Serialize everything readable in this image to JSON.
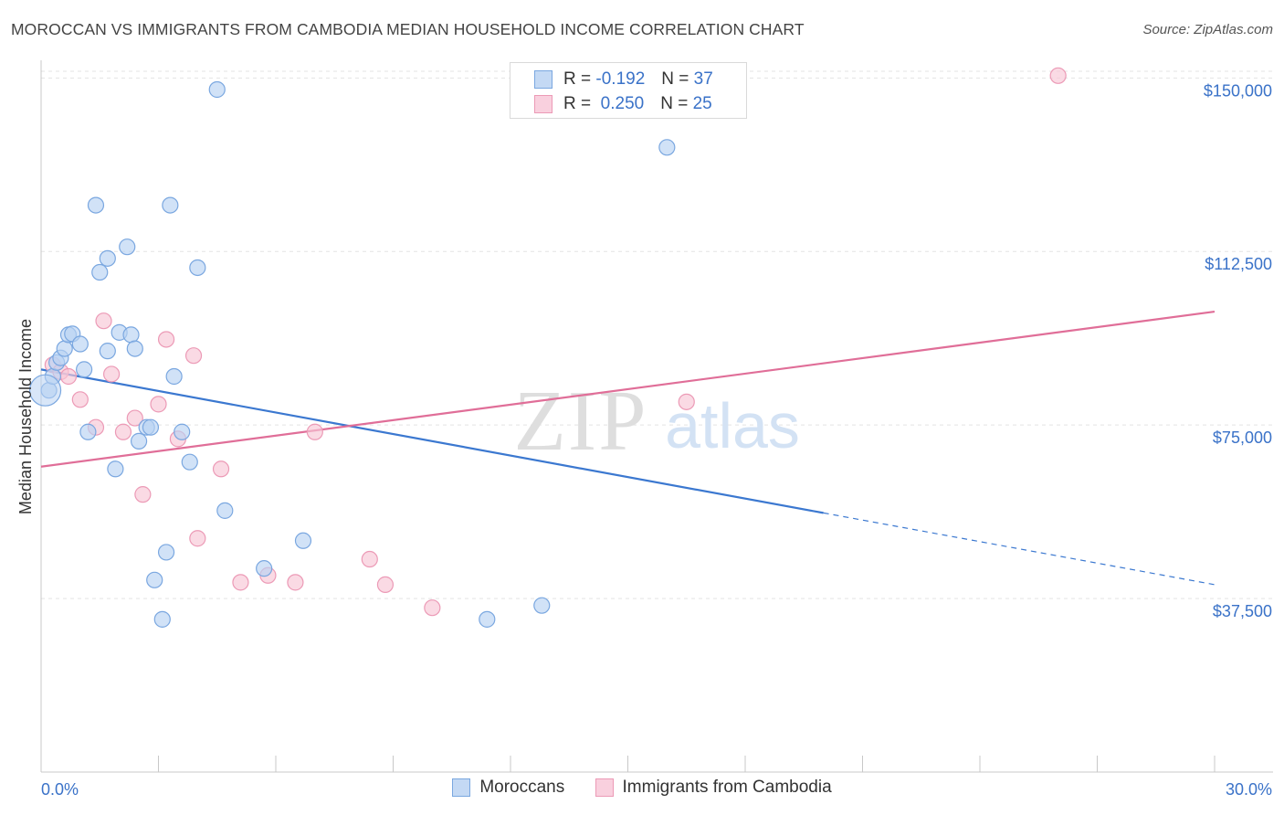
{
  "title": "MOROCCAN VS IMMIGRANTS FROM CAMBODIA MEDIAN HOUSEHOLD INCOME CORRELATION CHART",
  "source": "Source: ZipAtlas.com",
  "watermark": {
    "zip": "ZIP",
    "atlas": "atlas"
  },
  "stats_legend": {
    "rows": [
      {
        "r_label": "R =",
        "r_value": "-0.192",
        "n_label": "N =",
        "n_value": "37",
        "color": "#8ab4e8"
      },
      {
        "r_label": "R =",
        "r_value": "0.250",
        "n_label": "N =",
        "n_value": "25",
        "color": "#f2a8c0"
      }
    ]
  },
  "bottom_legend": [
    {
      "label": "Moroccans",
      "color": "#8ab4e8"
    },
    {
      "label": "Immigrants from Cambodia",
      "color": "#f2a8c0"
    }
  ],
  "chart_data": {
    "type": "scatter",
    "title": "MOROCCAN VS IMMIGRANTS FROM CAMBODIA MEDIAN HOUSEHOLD INCOME CORRELATION CHART",
    "xlabel": "",
    "ylabel": "Median Household Income",
    "xlim": [
      0,
      30
    ],
    "ylim": [
      0,
      155000
    ],
    "x_tick_labels": [
      "0.0%",
      "30.0%"
    ],
    "y_ticks": [
      37500,
      75000,
      112500,
      150000
    ],
    "y_tick_labels": [
      "$37,500",
      "$75,000",
      "$112,500",
      "$150,000"
    ],
    "grid": true,
    "legend_position": "top-center",
    "series": [
      {
        "name": "Moroccans",
        "color": "#3b78d0",
        "fill": "#b8d2f2",
        "points": [
          [
            0.2,
            82500
          ],
          [
            0.3,
            85500
          ],
          [
            0.4,
            88500
          ],
          [
            0.5,
            89500
          ],
          [
            0.6,
            91500
          ],
          [
            0.7,
            94500
          ],
          [
            0.8,
            94700
          ],
          [
            1.0,
            92500
          ],
          [
            1.1,
            87000
          ],
          [
            1.2,
            73500
          ],
          [
            1.4,
            122500
          ],
          [
            1.5,
            108000
          ],
          [
            1.7,
            91000
          ],
          [
            1.7,
            111000
          ],
          [
            1.9,
            65500
          ],
          [
            2.0,
            95000
          ],
          [
            2.2,
            113500
          ],
          [
            2.3,
            94500
          ],
          [
            2.4,
            91500
          ],
          [
            2.5,
            71500
          ],
          [
            2.7,
            74500
          ],
          [
            2.8,
            74500
          ],
          [
            2.9,
            41500
          ],
          [
            3.1,
            33000
          ],
          [
            3.2,
            47500
          ],
          [
            3.3,
            122500
          ],
          [
            3.4,
            85500
          ],
          [
            3.6,
            73500
          ],
          [
            3.8,
            67000
          ],
          [
            4.0,
            109000
          ],
          [
            4.5,
            147500
          ],
          [
            4.7,
            56500
          ],
          [
            5.7,
            44000
          ],
          [
            6.7,
            50000
          ],
          [
            11.4,
            33000
          ],
          [
            12.8,
            36000
          ],
          [
            16.0,
            135000
          ]
        ],
        "trend": {
          "x0": 0.0,
          "y0": 87000,
          "x_solid_end": 20.0,
          "x1": 30.0,
          "y1": 40500
        }
      },
      {
        "name": "Immigrants from Cambodia",
        "color": "#e06e98",
        "fill": "#f7c6d6",
        "points": [
          [
            0.3,
            88000
          ],
          [
            0.5,
            86500
          ],
          [
            0.7,
            85500
          ],
          [
            1.0,
            80500
          ],
          [
            1.4,
            74500
          ],
          [
            1.6,
            97500
          ],
          [
            1.8,
            86000
          ],
          [
            2.1,
            73500
          ],
          [
            2.4,
            76500
          ],
          [
            2.6,
            60000
          ],
          [
            3.0,
            79500
          ],
          [
            3.2,
            93500
          ],
          [
            3.5,
            72000
          ],
          [
            3.9,
            90000
          ],
          [
            4.0,
            50500
          ],
          [
            4.6,
            65500
          ],
          [
            5.1,
            41000
          ],
          [
            5.8,
            42500
          ],
          [
            6.5,
            41000
          ],
          [
            7.0,
            73500
          ],
          [
            8.4,
            46000
          ],
          [
            8.8,
            40500
          ],
          [
            10.0,
            35500
          ],
          [
            16.5,
            80000
          ],
          [
            26.0,
            150500
          ]
        ],
        "trend": {
          "x0": 0.0,
          "y0": 66000,
          "x1": 30.0,
          "y1": 99500
        }
      }
    ]
  }
}
